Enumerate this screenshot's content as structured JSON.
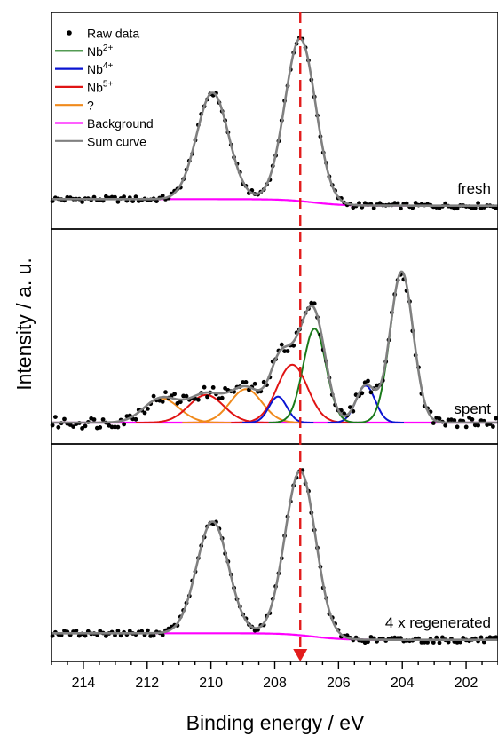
{
  "chart_data": {
    "type": "line",
    "xlabel": "Binding energy / eV",
    "ylabel": "Intensity / a. u.",
    "xlim": [
      215,
      201
    ],
    "x_reversed": true,
    "x_ticks": [
      214,
      212,
      210,
      208,
      206,
      204,
      202
    ],
    "marker_line_x": 207.2,
    "legend": {
      "placement": "top-left",
      "entries": [
        {
          "key": "raw",
          "base": "Raw data",
          "sup": "",
          "color": "#000000",
          "style": "dot"
        },
        {
          "key": "nb2",
          "base": "Nb",
          "sup": "2+",
          "color": "#1a7a1a",
          "style": "line"
        },
        {
          "key": "nb4",
          "base": "Nb",
          "sup": "4+",
          "color": "#0a14d2",
          "style": "line"
        },
        {
          "key": "nb5",
          "base": "Nb",
          "sup": "5+",
          "color": "#e01414",
          "style": "line"
        },
        {
          "key": "unk",
          "base": "?",
          "sup": "",
          "color": "#f08a1c",
          "style": "line"
        },
        {
          "key": "bg",
          "base": "Background",
          "sup": "",
          "color": "#ff00ff",
          "style": "line"
        },
        {
          "key": "sum",
          "base": "Sum curve",
          "sup": "",
          "color": "#808080",
          "style": "line"
        }
      ]
    },
    "panels": [
      {
        "label": "fresh",
        "baseline": {
          "left": 0.02,
          "right": -0.02
        },
        "components": [],
        "sum_peaks": [
          {
            "center": 209.95,
            "amp": 0.655,
            "sigma": 0.5
          },
          {
            "center": 207.2,
            "amp": 1.0,
            "sigma": 0.48
          }
        ]
      },
      {
        "label": "spent",
        "baseline": {
          "left": 0.0,
          "right": 0.0
        },
        "components": [
          {
            "key": "unk",
            "center": 211.55,
            "amp": 0.145,
            "sigma": 0.55
          },
          {
            "key": "unk",
            "center": 208.9,
            "amp": 0.2,
            "sigma": 0.5
          },
          {
            "key": "nb5",
            "center": 210.15,
            "amp": 0.165,
            "sigma": 0.55
          },
          {
            "key": "nb5",
            "center": 207.45,
            "amp": 0.345,
            "sigma": 0.48
          },
          {
            "key": "nb4",
            "center": 207.9,
            "amp": 0.155,
            "sigma": 0.28
          },
          {
            "key": "nb4",
            "center": 205.15,
            "amp": 0.22,
            "sigma": 0.3
          },
          {
            "key": "nb2",
            "center": 206.75,
            "amp": 0.56,
            "sigma": 0.36
          },
          {
            "key": "nb2",
            "center": 204.02,
            "amp": 0.9,
            "sigma": 0.36
          }
        ]
      },
      {
        "label": "4 x regenerated",
        "baseline": {
          "left": 0.02,
          "right": -0.02
        },
        "components": [],
        "sum_peaks": [
          {
            "center": 209.95,
            "amp": 0.68,
            "sigma": 0.5
          },
          {
            "center": 207.2,
            "amp": 1.0,
            "sigma": 0.48
          }
        ]
      }
    ]
  }
}
